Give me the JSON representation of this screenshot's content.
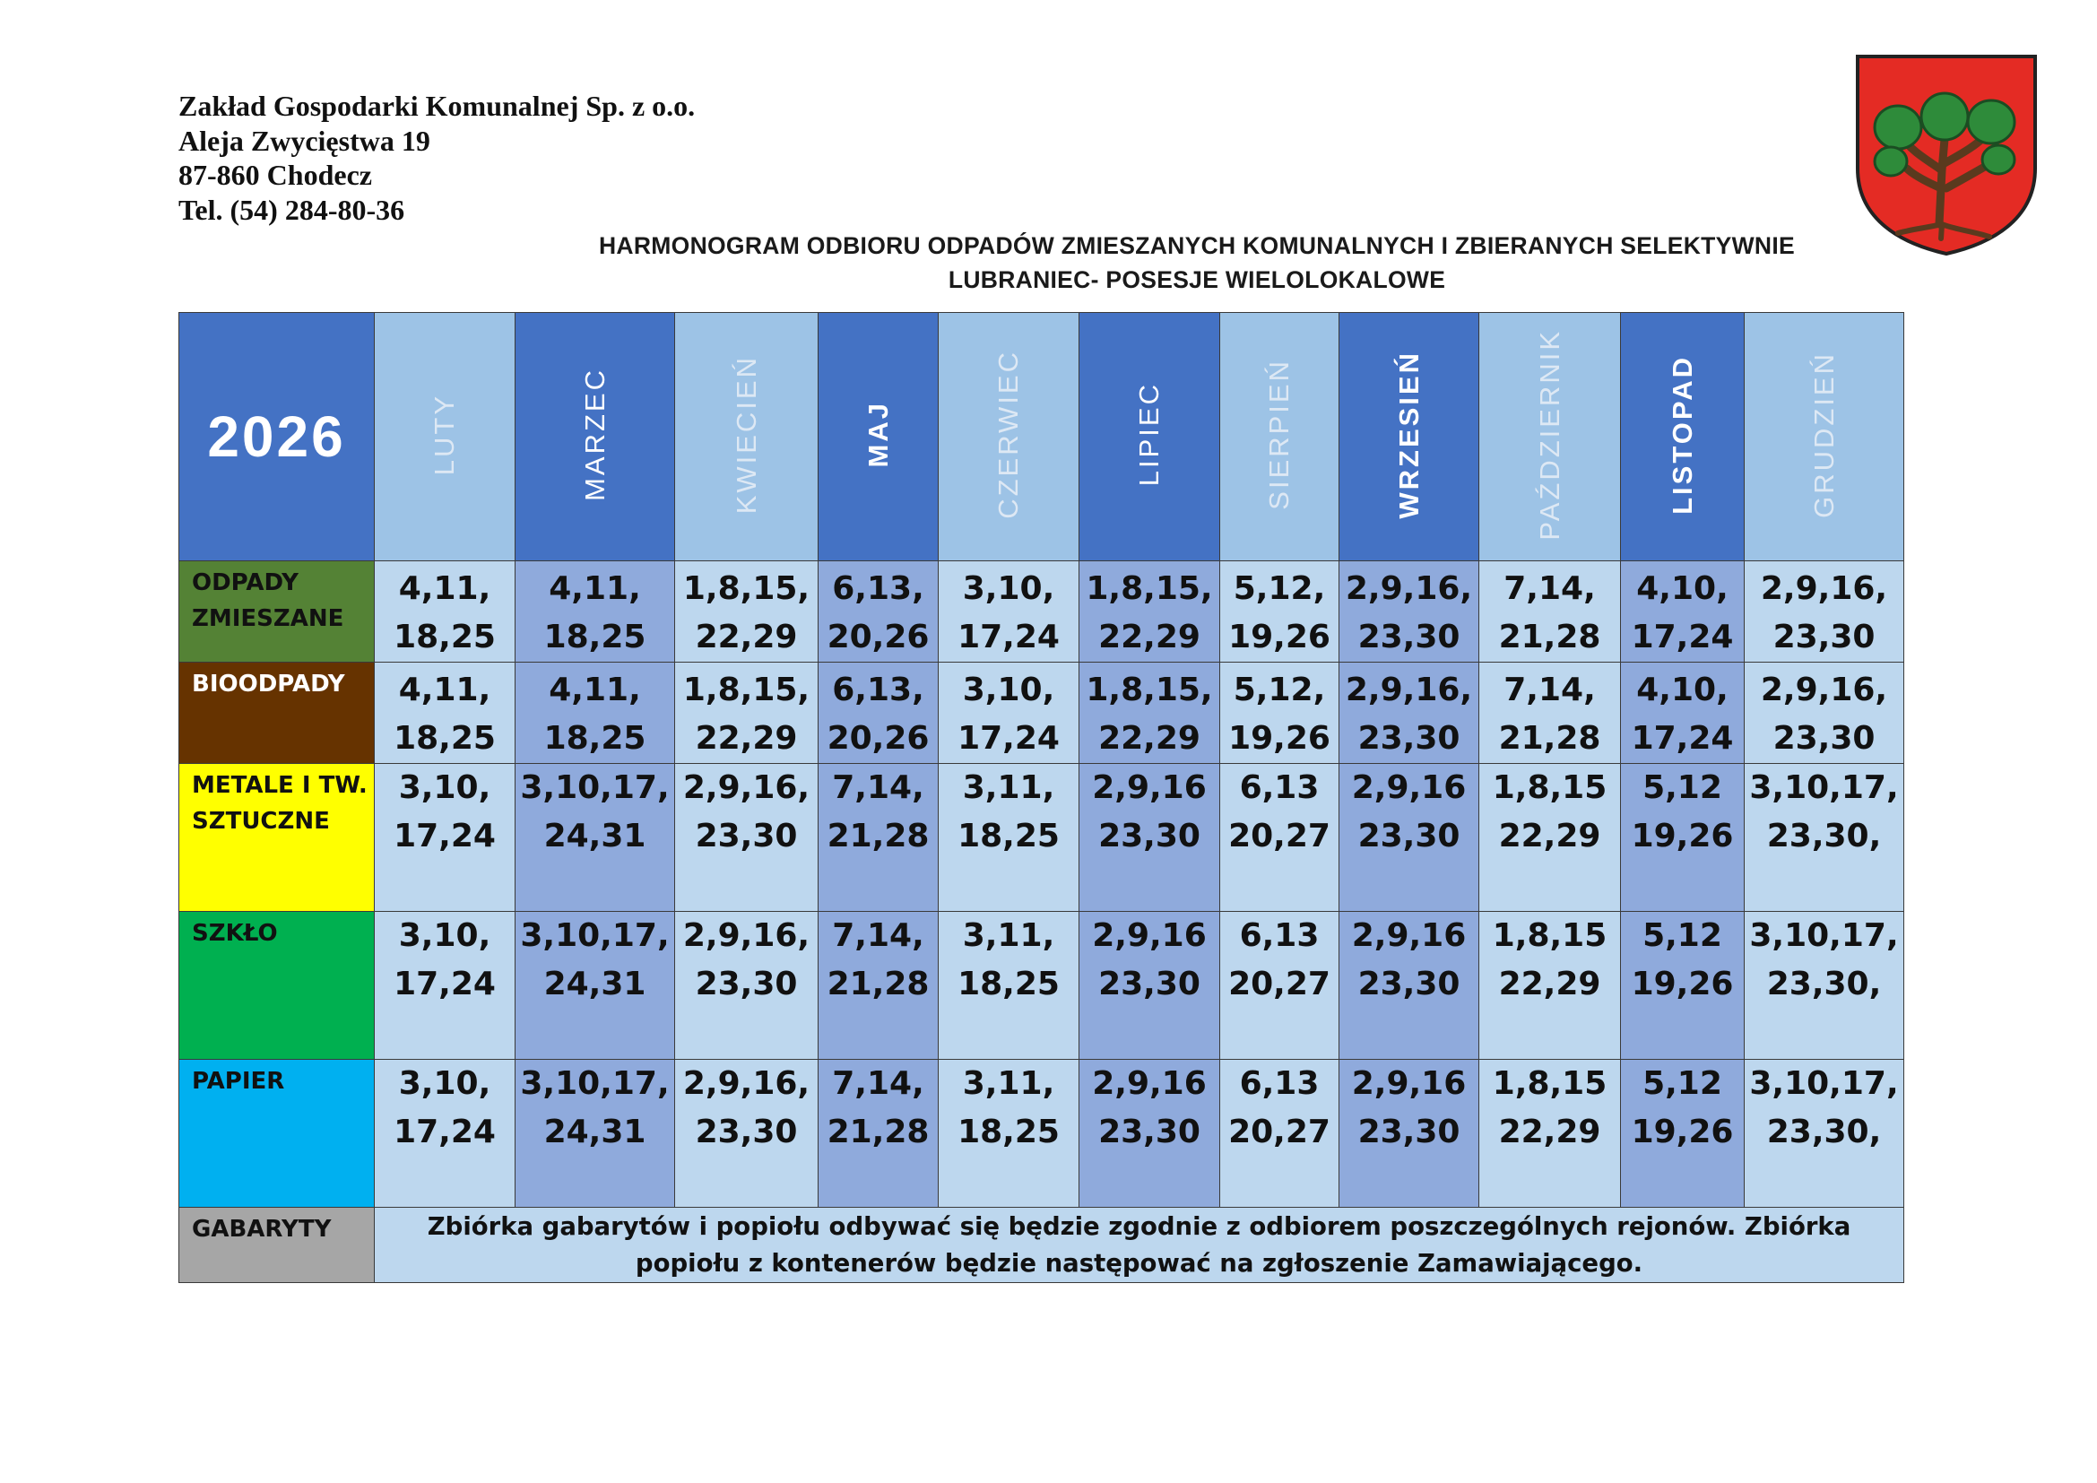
{
  "company": {
    "lines": [
      "Zakład Gospodarki Komunalnej Sp. z o.o.",
      "Aleja Zwycięstwa 19",
      "87-860 Chodecz",
      "Tel. (54) 284-80-36"
    ]
  },
  "title": {
    "line1": "HARMONOGRAM ODBIORU ODPADÓW ZMIESZANYCH KOMUNALNYCH I ZBIERANYCH SELEKTYWNIE",
    "line2": "LUBRANIEC- POSESJE WIELOLOKALOWE"
  },
  "crest": {
    "icon": "coat-of-arms-tree-icon",
    "shield_color": "#e42b24",
    "tree_color": "#2e8b3a"
  },
  "table": {
    "year": "2026",
    "months": [
      "LUTY",
      "MARZEC",
      "KWIECIEŃ",
      "MAJ",
      "CZERWIEC",
      "LIPIEC",
      "SIERPIEŃ",
      "WRZESIEŃ",
      "PAŹDZIERNIK",
      "LISTOPAD",
      "GRUDZIEŃ"
    ],
    "rows": [
      {
        "category": "ODPADY ZMIESZANE",
        "color": "#548235",
        "values": [
          [
            "4,11,",
            "18,25"
          ],
          [
            "4,11,",
            "18,25"
          ],
          [
            "1,8,15,",
            "22,29"
          ],
          [
            "6,13,",
            "20,26"
          ],
          [
            "3,10,",
            "17,24"
          ],
          [
            "1,8,15,",
            "22,29"
          ],
          [
            "5,12,",
            "19,26"
          ],
          [
            "2,9,16,",
            "23,30"
          ],
          [
            "7,14,",
            "21,28"
          ],
          [
            "4,10,",
            "17,24"
          ],
          [
            "2,9,16,",
            "23,30"
          ]
        ]
      },
      {
        "category": "BIOODPADY",
        "color": "#663300",
        "values": [
          [
            "4,11,",
            "18,25"
          ],
          [
            "4,11,",
            "18,25"
          ],
          [
            "1,8,15,",
            "22,29"
          ],
          [
            "6,13,",
            "20,26"
          ],
          [
            "3,10,",
            "17,24"
          ],
          [
            "1,8,15,",
            "22,29"
          ],
          [
            "5,12,",
            "19,26"
          ],
          [
            "2,9,16,",
            "23,30"
          ],
          [
            "7,14,",
            "21,28"
          ],
          [
            "4,10,",
            "17,24"
          ],
          [
            "2,9,16,",
            "23,30"
          ]
        ]
      },
      {
        "category": "METALE I TW. SZTUCZNE",
        "color": "#ffff00",
        "values": [
          [
            "3,10,",
            "17,24"
          ],
          [
            "3,10,17,",
            "24,31"
          ],
          [
            "2,9,16,",
            "23,30"
          ],
          [
            "7,14,",
            "21,28"
          ],
          [
            "3,11,",
            "18,25"
          ],
          [
            "2,9,16",
            "23,30"
          ],
          [
            "6,13",
            "20,27"
          ],
          [
            "2,9,16",
            "23,30"
          ],
          [
            "1,8,15",
            "22,29"
          ],
          [
            "5,12",
            "19,26"
          ],
          [
            "3,10,17,",
            "23,30,"
          ]
        ]
      },
      {
        "category": "SZKŁO",
        "color": "#00b050",
        "values": [
          [
            "3,10,",
            "17,24"
          ],
          [
            "3,10,17,",
            "24,31"
          ],
          [
            "2,9,16,",
            "23,30"
          ],
          [
            "7,14,",
            "21,28"
          ],
          [
            "3,11,",
            "18,25"
          ],
          [
            "2,9,16",
            "23,30"
          ],
          [
            "6,13",
            "20,27"
          ],
          [
            "2,9,16",
            "23,30"
          ],
          [
            "1,8,15",
            "22,29"
          ],
          [
            "5,12",
            "19,26"
          ],
          [
            "3,10,17,",
            "23,30,"
          ]
        ]
      },
      {
        "category": "PAPIER",
        "color": "#00b0f0",
        "values": [
          [
            "3,10,",
            "17,24"
          ],
          [
            "3,10,17,",
            "24,31"
          ],
          [
            "2,9,16,",
            "23,30"
          ],
          [
            "7,14,",
            "21,28"
          ],
          [
            "3,11,",
            "18,25"
          ],
          [
            "2,9,16",
            "23,30"
          ],
          [
            "6,13",
            "20,27"
          ],
          [
            "2,9,16",
            "23,30"
          ],
          [
            "1,8,15",
            "22,29"
          ],
          [
            "5,12",
            "19,26"
          ],
          [
            "3,10,17,",
            "23,30,"
          ]
        ]
      }
    ],
    "gabaryty": {
      "category": "GABARYTY",
      "color": "#a6a6a6",
      "note": "Zbiórka gabarytów i popiołu odbywać się będzie zgodnie z odbiorem poszczególnych rejonów. Zbiórka popiołu z kontenerów będzie następować na zgłoszenie Zamawiającego."
    }
  }
}
